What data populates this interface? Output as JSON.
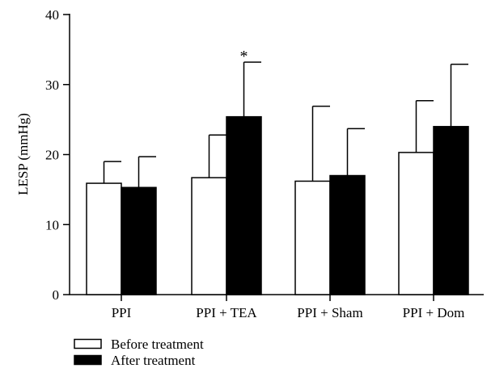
{
  "chart_data": {
    "type": "bar",
    "ylabel": "LESP (mmHg)",
    "ylim": [
      0,
      40
    ],
    "yticks": [
      0,
      10,
      20,
      30,
      40
    ],
    "grid": false,
    "legend_position": "bottom-left",
    "categories": [
      "PPI",
      "PPI + TEA",
      "PPI + Sham",
      "PPI + Dom"
    ],
    "series": [
      {
        "name": "Before treatment",
        "fill": "#ffffff",
        "values": [
          15.9,
          16.7,
          16.2,
          20.3
        ],
        "error_upper": [
          19.0,
          22.8,
          26.9,
          27.7
        ]
      },
      {
        "name": "After treatment",
        "fill": "#000000",
        "values": [
          15.3,
          25.4,
          17.0,
          24.0
        ],
        "error_upper": [
          19.7,
          33.2,
          23.7,
          32.9
        ]
      }
    ],
    "annotations": [
      {
        "text": "*",
        "category": "PPI + TEA",
        "series": "After treatment"
      }
    ]
  }
}
